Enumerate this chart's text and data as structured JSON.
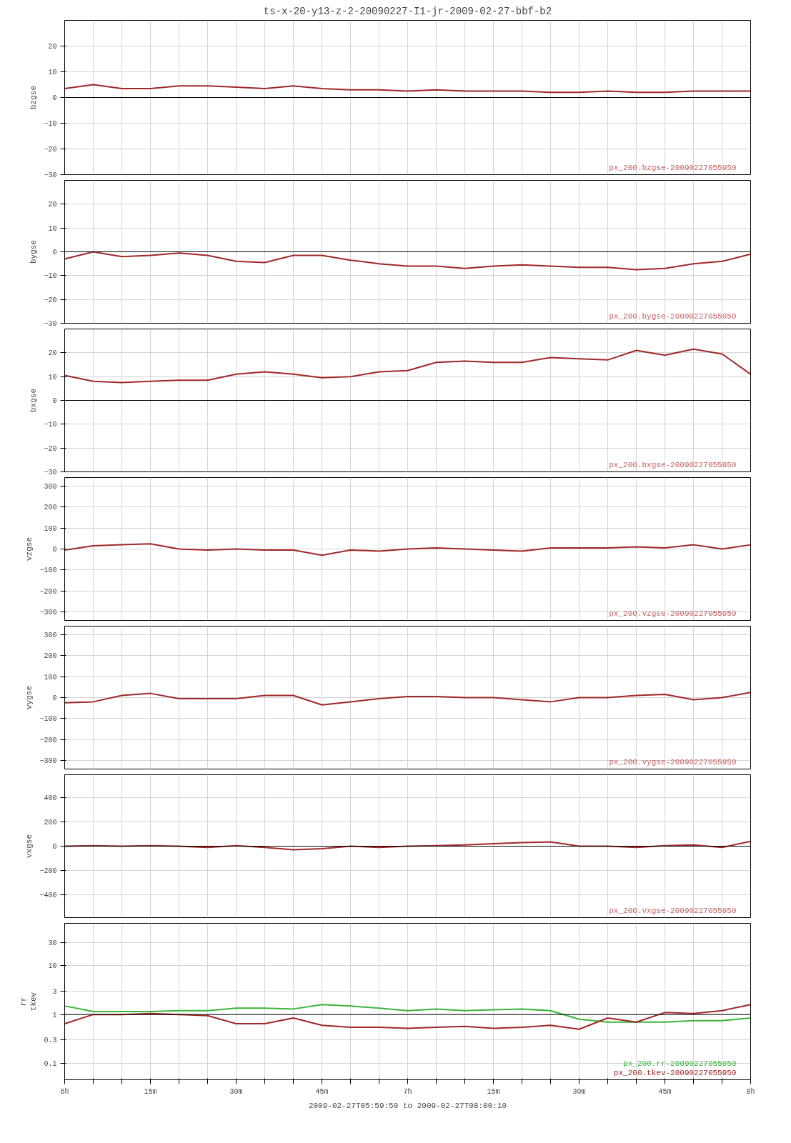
{
  "chart_data": [
    {
      "type": "line",
      "title": "ts-x-20-y13-z-2-20090227-I1-jr-2009-02-27-bbf-b2",
      "ylabel": "bzgse",
      "x": [
        "2009-02-27T06:00",
        "2009-02-27T06:05",
        "2009-02-27T06:10",
        "2009-02-27T06:15",
        "2009-02-27T06:20",
        "2009-02-27T06:25",
        "2009-02-27T06:30",
        "2009-02-27T06:35",
        "2009-02-27T06:40",
        "2009-02-27T06:45",
        "2009-02-27T06:50",
        "2009-02-27T06:55",
        "2009-02-27T07:00",
        "2009-02-27T07:05",
        "2009-02-27T07:10",
        "2009-02-27T07:15",
        "2009-02-27T07:20",
        "2009-02-27T07:25",
        "2009-02-27T07:30",
        "2009-02-27T07:35",
        "2009-02-27T07:40",
        "2009-02-27T07:45",
        "2009-02-27T07:50",
        "2009-02-27T07:55",
        "2009-02-27T08:00"
      ],
      "xlim": [
        "2009-02-27T06:00",
        "2009-02-27T08:00"
      ],
      "xticks": [
        "2009-02-27T06:00",
        "2009-02-27T06:05",
        "2009-02-27T06:10",
        "2009-02-27T06:15",
        "2009-02-27T06:20",
        "2009-02-27T06:25",
        "2009-02-27T06:30",
        "2009-02-27T06:35",
        "2009-02-27T06:40",
        "2009-02-27T06:45",
        "2009-02-27T06:50",
        "2009-02-27T06:55",
        "2009-02-27T07:00",
        "2009-02-27T07:05",
        "2009-02-27T07:10",
        "2009-02-27T07:15",
        "2009-02-27T07:20",
        "2009-02-27T07:25",
        "2009-02-27T07:30",
        "2009-02-27T07:35",
        "2009-02-27T07:40",
        "2009-02-27T07:45",
        "2009-02-27T07:50",
        "2009-02-27T07:55",
        "2009-02-27T08:00"
      ],
      "ylim": [
        -30,
        30
      ],
      "yticks": [
        -30,
        -20,
        -10,
        0,
        10,
        20
      ],
      "tick_labels": "y",
      "grid": true,
      "ref_lines": [
        {
          "axis": "y",
          "value": 0,
          "color": "#000000"
        }
      ],
      "annotations": [
        "px_200.bzgse-20090227055950"
      ],
      "series": [
        {
          "color": "#a02828",
          "values": [
            3.5,
            5,
            3.5,
            3.5,
            4.5,
            4.5,
            4,
            3.5,
            4.5,
            3.5,
            3,
            3,
            2.5,
            3,
            2.5,
            2.5,
            2.5,
            2,
            2,
            2.5,
            2,
            2,
            2.5,
            2.5,
            2.5
          ]
        }
      ]
    },
    {
      "type": "line",
      "ylabel": "bygse",
      "x": [
        "2009-02-27T06:00",
        "2009-02-27T06:05",
        "2009-02-27T06:10",
        "2009-02-27T06:15",
        "2009-02-27T06:20",
        "2009-02-27T06:25",
        "2009-02-27T06:30",
        "2009-02-27T06:35",
        "2009-02-27T06:40",
        "2009-02-27T06:45",
        "2009-02-27T06:50",
        "2009-02-27T06:55",
        "2009-02-27T07:00",
        "2009-02-27T07:05",
        "2009-02-27T07:10",
        "2009-02-27T07:15",
        "2009-02-27T07:20",
        "2009-02-27T07:25",
        "2009-02-27T07:30",
        "2009-02-27T07:35",
        "2009-02-27T07:40",
        "2009-02-27T07:45",
        "2009-02-27T07:50",
        "2009-02-27T07:55",
        "2009-02-27T08:00"
      ],
      "xlim": [
        "2009-02-27T06:00",
        "2009-02-27T08:00"
      ],
      "xticks": [
        "2009-02-27T06:00",
        "2009-02-27T06:05",
        "2009-02-27T06:10",
        "2009-02-27T06:15",
        "2009-02-27T06:20",
        "2009-02-27T06:25",
        "2009-02-27T06:30",
        "2009-02-27T06:35",
        "2009-02-27T06:40",
        "2009-02-27T06:45",
        "2009-02-27T06:50",
        "2009-02-27T06:55",
        "2009-02-27T07:00",
        "2009-02-27T07:05",
        "2009-02-27T07:10",
        "2009-02-27T07:15",
        "2009-02-27T07:20",
        "2009-02-27T07:25",
        "2009-02-27T07:30",
        "2009-02-27T07:35",
        "2009-02-27T07:40",
        "2009-02-27T07:45",
        "2009-02-27T07:50",
        "2009-02-27T07:55",
        "2009-02-27T08:00"
      ],
      "ylim": [
        -30,
        30
      ],
      "yticks": [
        -30,
        -20,
        -10,
        0,
        10,
        20
      ],
      "tick_labels": "y",
      "grid": true,
      "ref_lines": [
        {
          "axis": "y",
          "value": 0,
          "color": "#000000"
        }
      ],
      "annotations": [
        "px_200.bygse-20090227055950"
      ],
      "series": [
        {
          "color": "#a02828",
          "values": [
            -3,
            0,
            -2,
            -1.5,
            -0.5,
            -1.5,
            -4,
            -4.5,
            -1.5,
            -1.5,
            -3.5,
            -5,
            -6,
            -6,
            -7,
            -6,
            -5.5,
            -6,
            -6.5,
            -6.5,
            -7.5,
            -7,
            -5,
            -4,
            -1
          ]
        }
      ]
    },
    {
      "type": "line",
      "ylabel": "bxgse",
      "x": [
        "2009-02-27T06:00",
        "2009-02-27T06:05",
        "2009-02-27T06:10",
        "2009-02-27T06:15",
        "2009-02-27T06:20",
        "2009-02-27T06:25",
        "2009-02-27T06:30",
        "2009-02-27T06:35",
        "2009-02-27T06:40",
        "2009-02-27T06:45",
        "2009-02-27T06:50",
        "2009-02-27T06:55",
        "2009-02-27T07:00",
        "2009-02-27T07:05",
        "2009-02-27T07:10",
        "2009-02-27T07:15",
        "2009-02-27T07:20",
        "2009-02-27T07:25",
        "2009-02-27T07:30",
        "2009-02-27T07:35",
        "2009-02-27T07:40",
        "2009-02-27T07:45",
        "2009-02-27T07:50",
        "2009-02-27T07:55",
        "2009-02-27T08:00"
      ],
      "xlim": [
        "2009-02-27T06:00",
        "2009-02-27T08:00"
      ],
      "xticks": [
        "2009-02-27T06:00",
        "2009-02-27T06:05",
        "2009-02-27T06:10",
        "2009-02-27T06:15",
        "2009-02-27T06:20",
        "2009-02-27T06:25",
        "2009-02-27T06:30",
        "2009-02-27T06:35",
        "2009-02-27T06:40",
        "2009-02-27T06:45",
        "2009-02-27T06:50",
        "2009-02-27T06:55",
        "2009-02-27T07:00",
        "2009-02-27T07:05",
        "2009-02-27T07:10",
        "2009-02-27T07:15",
        "2009-02-27T07:20",
        "2009-02-27T07:25",
        "2009-02-27T07:30",
        "2009-02-27T07:35",
        "2009-02-27T07:40",
        "2009-02-27T07:45",
        "2009-02-27T07:50",
        "2009-02-27T07:55",
        "2009-02-27T08:00"
      ],
      "ylim": [
        -30,
        30
      ],
      "yticks": [
        -30,
        -20,
        -10,
        0,
        10,
        20
      ],
      "tick_labels": "y",
      "grid": true,
      "ref_lines": [
        {
          "axis": "y",
          "value": 0,
          "color": "#000000"
        }
      ],
      "annotations": [
        "px_200.bxgse-20090227055950"
      ],
      "series": [
        {
          "color": "#a02828",
          "values": [
            10.5,
            8,
            7.5,
            8,
            8.5,
            8.5,
            11,
            12,
            11,
            9.5,
            10,
            12,
            12.5,
            16,
            16.5,
            16,
            16,
            18,
            17.5,
            17,
            21,
            19,
            21.5,
            19.5,
            11
          ]
        }
      ]
    },
    {
      "type": "line",
      "ylabel": "vzgse",
      "x": [
        "2009-02-27T06:00",
        "2009-02-27T06:05",
        "2009-02-27T06:10",
        "2009-02-27T06:15",
        "2009-02-27T06:20",
        "2009-02-27T06:25",
        "2009-02-27T06:30",
        "2009-02-27T06:35",
        "2009-02-27T06:40",
        "2009-02-27T06:45",
        "2009-02-27T06:50",
        "2009-02-27T06:55",
        "2009-02-27T07:00",
        "2009-02-27T07:05",
        "2009-02-27T07:10",
        "2009-02-27T07:15",
        "2009-02-27T07:20",
        "2009-02-27T07:25",
        "2009-02-27T07:30",
        "2009-02-27T07:35",
        "2009-02-27T07:40",
        "2009-02-27T07:45",
        "2009-02-27T07:50",
        "2009-02-27T07:55",
        "2009-02-27T08:00"
      ],
      "xlim": [
        "2009-02-27T06:00",
        "2009-02-27T08:00"
      ],
      "xticks": [
        "2009-02-27T06:00",
        "2009-02-27T06:05",
        "2009-02-27T06:10",
        "2009-02-27T06:15",
        "2009-02-27T06:20",
        "2009-02-27T06:25",
        "2009-02-27T06:30",
        "2009-02-27T06:35",
        "2009-02-27T06:40",
        "2009-02-27T06:45",
        "2009-02-27T06:50",
        "2009-02-27T06:55",
        "2009-02-27T07:00",
        "2009-02-27T07:05",
        "2009-02-27T07:10",
        "2009-02-27T07:15",
        "2009-02-27T07:20",
        "2009-02-27T07:25",
        "2009-02-27T07:30",
        "2009-02-27T07:35",
        "2009-02-27T07:40",
        "2009-02-27T07:45",
        "2009-02-27T07:50",
        "2009-02-27T07:55",
        "2009-02-27T08:00"
      ],
      "ylim": [
        -340,
        340
      ],
      "yticks": [
        -300,
        -200,
        -100,
        0,
        100,
        200,
        300
      ],
      "tick_labels": "y",
      "grid": true,
      "annotations": [
        "px_200.vzgse-20090227055950"
      ],
      "series": [
        {
          "color": "#a02828",
          "values": [
            -5,
            15,
            20,
            25,
            0,
            -5,
            0,
            -5,
            -5,
            -30,
            -5,
            -10,
            0,
            5,
            0,
            -5,
            -10,
            5,
            5,
            5,
            10,
            5,
            20,
            0,
            20
          ]
        }
      ]
    },
    {
      "type": "line",
      "ylabel": "vygse",
      "x": [
        "2009-02-27T06:00",
        "2009-02-27T06:05",
        "2009-02-27T06:10",
        "2009-02-27T06:15",
        "2009-02-27T06:20",
        "2009-02-27T06:25",
        "2009-02-27T06:30",
        "2009-02-27T06:35",
        "2009-02-27T06:40",
        "2009-02-27T06:45",
        "2009-02-27T06:50",
        "2009-02-27T06:55",
        "2009-02-27T07:00",
        "2009-02-27T07:05",
        "2009-02-27T07:10",
        "2009-02-27T07:15",
        "2009-02-27T07:20",
        "2009-02-27T07:25",
        "2009-02-27T07:30",
        "2009-02-27T07:35",
        "2009-02-27T07:40",
        "2009-02-27T07:45",
        "2009-02-27T07:50",
        "2009-02-27T07:55",
        "2009-02-27T08:00"
      ],
      "xlim": [
        "2009-02-27T06:00",
        "2009-02-27T08:00"
      ],
      "xticks": [
        "2009-02-27T06:00",
        "2009-02-27T06:05",
        "2009-02-27T06:10",
        "2009-02-27T06:15",
        "2009-02-27T06:20",
        "2009-02-27T06:25",
        "2009-02-27T06:30",
        "2009-02-27T06:35",
        "2009-02-27T06:40",
        "2009-02-27T06:45",
        "2009-02-27T06:50",
        "2009-02-27T06:55",
        "2009-02-27T07:00",
        "2009-02-27T07:05",
        "2009-02-27T07:10",
        "2009-02-27T07:15",
        "2009-02-27T07:20",
        "2009-02-27T07:25",
        "2009-02-27T07:30",
        "2009-02-27T07:35",
        "2009-02-27T07:40",
        "2009-02-27T07:45",
        "2009-02-27T07:50",
        "2009-02-27T07:55",
        "2009-02-27T08:00"
      ],
      "ylim": [
        -340,
        340
      ],
      "yticks": [
        -300,
        -200,
        -100,
        0,
        100,
        200,
        300
      ],
      "tick_labels": "y",
      "grid": true,
      "annotations": [
        "px_200.vygse-20090227055950"
      ],
      "series": [
        {
          "color": "#a02828",
          "values": [
            -25,
            -20,
            10,
            20,
            -5,
            -5,
            -5,
            10,
            10,
            -35,
            -20,
            -5,
            5,
            5,
            0,
            0,
            -10,
            -20,
            0,
            0,
            10,
            15,
            -10,
            0,
            25
          ]
        }
      ]
    },
    {
      "type": "line",
      "ylabel": "vxgse",
      "x": [
        "2009-02-27T06:00",
        "2009-02-27T06:05",
        "2009-02-27T06:10",
        "2009-02-27T06:15",
        "2009-02-27T06:20",
        "2009-02-27T06:25",
        "2009-02-27T06:30",
        "2009-02-27T06:35",
        "2009-02-27T06:40",
        "2009-02-27T06:45",
        "2009-02-27T06:50",
        "2009-02-27T06:55",
        "2009-02-27T07:00",
        "2009-02-27T07:05",
        "2009-02-27T07:10",
        "2009-02-27T07:15",
        "2009-02-27T07:20",
        "2009-02-27T07:25",
        "2009-02-27T07:30",
        "2009-02-27T07:35",
        "2009-02-27T07:40",
        "2009-02-27T07:45",
        "2009-02-27T07:50",
        "2009-02-27T07:55",
        "2009-02-27T08:00"
      ],
      "xlim": [
        "2009-02-27T06:00",
        "2009-02-27T08:00"
      ],
      "xticks": [
        "2009-02-27T06:00",
        "2009-02-27T06:05",
        "2009-02-27T06:10",
        "2009-02-27T06:15",
        "2009-02-27T06:20",
        "2009-02-27T06:25",
        "2009-02-27T06:30",
        "2009-02-27T06:35",
        "2009-02-27T06:40",
        "2009-02-27T06:45",
        "2009-02-27T06:50",
        "2009-02-27T06:55",
        "2009-02-27T07:00",
        "2009-02-27T07:05",
        "2009-02-27T07:10",
        "2009-02-27T07:15",
        "2009-02-27T07:20",
        "2009-02-27T07:25",
        "2009-02-27T07:30",
        "2009-02-27T07:35",
        "2009-02-27T07:40",
        "2009-02-27T07:45",
        "2009-02-27T07:50",
        "2009-02-27T07:55",
        "2009-02-27T08:00"
      ],
      "ylim": [
        -590,
        590
      ],
      "yticks": [
        -400,
        -200,
        0,
        200,
        400
      ],
      "tick_labels": "y",
      "grid": true,
      "ref_lines": [
        {
          "axis": "y",
          "value": 0,
          "color": "#000000"
        }
      ],
      "annotations": [
        "px_200.vxgse-20090227055950"
      ],
      "series": [
        {
          "color": "#a02828",
          "values": [
            0,
            5,
            0,
            5,
            0,
            -10,
            5,
            -10,
            -30,
            -20,
            0,
            -10,
            0,
            5,
            10,
            20,
            30,
            35,
            0,
            0,
            -10,
            5,
            10,
            -10,
            40
          ]
        }
      ]
    },
    {
      "type": "line",
      "ylabel": "rr\ntkev",
      "xlabel": "2009-02-27T05:59:50 to 2009-02-27T08:00:10",
      "x": [
        "2009-02-27T06:00",
        "2009-02-27T06:05",
        "2009-02-27T06:10",
        "2009-02-27T06:15",
        "2009-02-27T06:20",
        "2009-02-27T06:25",
        "2009-02-27T06:30",
        "2009-02-27T06:35",
        "2009-02-27T06:40",
        "2009-02-27T06:45",
        "2009-02-27T06:50",
        "2009-02-27T06:55",
        "2009-02-27T07:00",
        "2009-02-27T07:05",
        "2009-02-27T07:10",
        "2009-02-27T07:15",
        "2009-02-27T07:20",
        "2009-02-27T07:25",
        "2009-02-27T07:30",
        "2009-02-27T07:35",
        "2009-02-27T07:40",
        "2009-02-27T07:45",
        "2009-02-27T07:50",
        "2009-02-27T07:55",
        "2009-02-27T08:00"
      ],
      "xlim": [
        "2009-02-27T06:00",
        "2009-02-27T08:00"
      ],
      "xticks": [
        {
          "value": "2009-02-27T06:00",
          "label": "6h"
        },
        {
          "value": "2009-02-27T06:05",
          "label": null
        },
        {
          "value": "2009-02-27T06:10",
          "label": null
        },
        {
          "value": "2009-02-27T06:15",
          "label": "15m"
        },
        {
          "value": "2009-02-27T06:20",
          "label": null
        },
        {
          "value": "2009-02-27T06:25",
          "label": null
        },
        {
          "value": "2009-02-27T06:30",
          "label": "30m"
        },
        {
          "value": "2009-02-27T06:35",
          "label": null
        },
        {
          "value": "2009-02-27T06:40",
          "label": null
        },
        {
          "value": "2009-02-27T06:45",
          "label": "45m"
        },
        {
          "value": "2009-02-27T06:50",
          "label": null
        },
        {
          "value": "2009-02-27T06:55",
          "label": null
        },
        {
          "value": "2009-02-27T07:00",
          "label": "7h"
        },
        {
          "value": "2009-02-27T07:05",
          "label": null
        },
        {
          "value": "2009-02-27T07:10",
          "label": null
        },
        {
          "value": "2009-02-27T07:15",
          "label": "15m"
        },
        {
          "value": "2009-02-27T07:20",
          "label": null
        },
        {
          "value": "2009-02-27T07:25",
          "label": null
        },
        {
          "value": "2009-02-27T07:30",
          "label": "30m"
        },
        {
          "value": "2009-02-27T07:35",
          "label": null
        },
        {
          "value": "2009-02-27T07:40",
          "label": null
        },
        {
          "value": "2009-02-27T07:45",
          "label": "45m"
        },
        {
          "value": "2009-02-27T07:50",
          "label": null
        },
        {
          "value": "2009-02-27T07:55",
          "label": null
        },
        {
          "value": "2009-02-27T08:00",
          "label": "8h"
        }
      ],
      "log": "y",
      "ylim": [
        0.046,
        74
      ],
      "yticks": [
        0.1,
        0.3,
        1,
        3,
        10,
        30
      ],
      "grid": true,
      "legend": "bottom right",
      "ref_lines": [
        {
          "axis": "y",
          "value": 1,
          "color": "#000000"
        }
      ],
      "series": [
        {
          "name": "px_200.rr-20090227055950",
          "color": "#3cb43c",
          "values": [
            1.5,
            1.15,
            1.15,
            1.15,
            1.2,
            1.2,
            1.35,
            1.35,
            1.3,
            1.6,
            1.5,
            1.35,
            1.2,
            1.3,
            1.2,
            1.25,
            1.3,
            1.2,
            0.8,
            0.7,
            0.7,
            0.7,
            0.75,
            0.75,
            0.85
          ]
        },
        {
          "name": "px_200.tkev-20090227055950",
          "color": "#a02828",
          "values": [
            0.65,
            1.0,
            1.0,
            1.05,
            1.0,
            0.95,
            0.65,
            0.65,
            0.85,
            0.6,
            0.55,
            0.55,
            0.52,
            0.55,
            0.57,
            0.52,
            0.55,
            0.6,
            0.5,
            0.85,
            0.7,
            1.1,
            1.05,
            1.2,
            1.6
          ]
        }
      ]
    }
  ]
}
